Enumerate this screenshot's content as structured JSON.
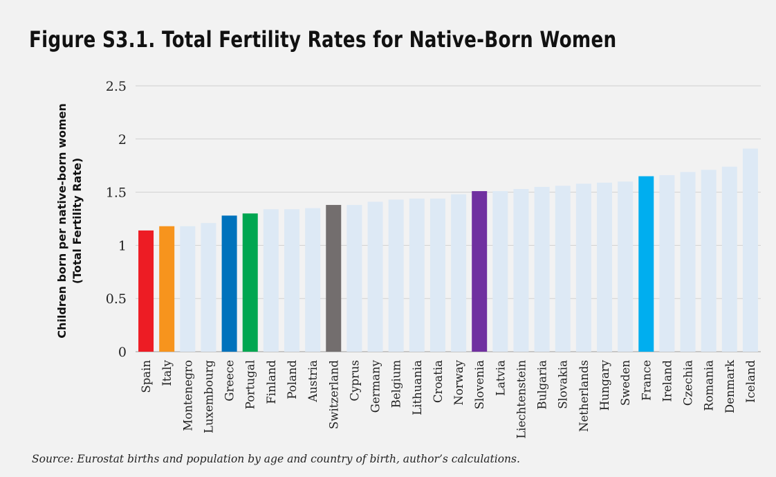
{
  "title": "Figure S3.1. Total Fertility Rates for Native-Born Women",
  "source": "Source: Eurostat births and population by age and country of birth, author’s calculations.",
  "chart_data": {
    "type": "bar",
    "title": "Figure S3.1. Total Fertility Rates for Native-Born Women",
    "xlabel": "",
    "ylabel": [
      "Children born per native-born women",
      "(Total Fertility Rate)"
    ],
    "ylim": [
      0,
      2.5
    ],
    "yticks": [
      "0",
      "0.5",
      "1",
      "1.5",
      "2",
      "2.5"
    ],
    "grid": true,
    "categories": [
      "Spain",
      "Italy",
      "Montenegro",
      "Luxembourg",
      "Greece",
      "Portugal",
      "Finland",
      "Poland",
      "Austria",
      "Switzerland",
      "Cyprus",
      "Germany",
      "Belgium",
      "Lithuania",
      "Croatia",
      "Norway",
      "Slovenia",
      "Latvia",
      "Liechtenstein",
      "Bulgaria",
      "Slovakia",
      "Netherlands",
      "Hungary",
      "Sweden",
      "France",
      "Ireland",
      "Czechia",
      "Romania",
      "Denmark",
      "Iceland"
    ],
    "values": [
      1.14,
      1.18,
      1.18,
      1.21,
      1.28,
      1.3,
      1.34,
      1.34,
      1.35,
      1.38,
      1.38,
      1.41,
      1.43,
      1.44,
      1.44,
      1.48,
      1.51,
      1.51,
      1.53,
      1.55,
      1.56,
      1.58,
      1.59,
      1.6,
      1.65,
      1.66,
      1.69,
      1.71,
      1.74,
      1.91
    ],
    "colors": [
      "#ed1c24",
      "#f7941d",
      "#dde9f5",
      "#dde9f5",
      "#0072bc",
      "#00a651",
      "#dde9f5",
      "#dde9f5",
      "#dde9f5",
      "#736e6e",
      "#dde9f5",
      "#dde9f5",
      "#dde9f5",
      "#dde9f5",
      "#dde9f5",
      "#dde9f5",
      "#7030a0",
      "#dde9f5",
      "#dde9f5",
      "#dde9f5",
      "#dde9f5",
      "#dde9f5",
      "#dde9f5",
      "#dde9f5",
      "#00aeef",
      "#dde9f5",
      "#dde9f5",
      "#dde9f5",
      "#dde9f5",
      "#dde9f5"
    ],
    "gridline_color": "#cfcfcf"
  }
}
